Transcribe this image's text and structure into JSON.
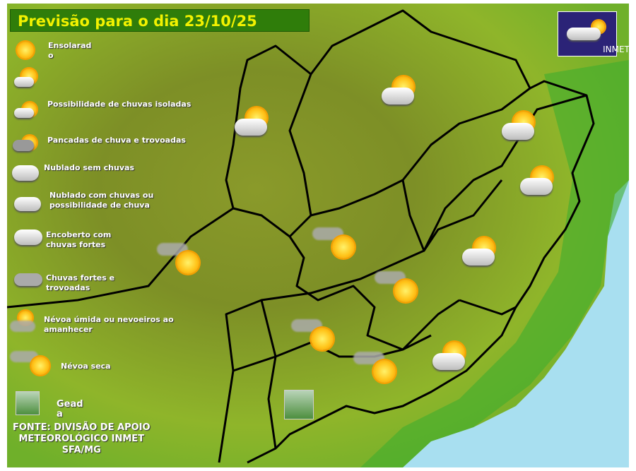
{
  "title": "Previsão para o dia 23/10/25",
  "logo": {
    "text": "INMET"
  },
  "legend": [
    {
      "icon": "sunny-icon",
      "label": "Ensolarad o"
    },
    {
      "icon": "partly-cloudy-icon",
      "label": ""
    },
    {
      "icon": "isolated-showers-icon",
      "label": "Possibilidade de chuvas isoladas"
    },
    {
      "icon": "thunder-showers-icon",
      "label": "Pancadas de chuva e trovoadas"
    },
    {
      "icon": "cloudy-icon",
      "label": "Nublado sem chuvas"
    },
    {
      "icon": "cloudy-rain-icon",
      "label": "Nublado com chuvas ou possibilidade de chuva"
    },
    {
      "icon": "overcast-heavy-rain-icon",
      "label": "Encoberto com chuvas fortes"
    },
    {
      "icon": "heavy-rain-thunder-icon",
      "label": "Chuvas fortes e trovoadas"
    },
    {
      "icon": "fog-icon",
      "label": "Névoa úmida ou nevoeiros ao amanhecer"
    },
    {
      "icon": "haze-icon",
      "label": "Névoa seca"
    },
    {
      "icon": "frost-icon",
      "label": "Gead a"
    }
  ],
  "source": {
    "line1": "FONTE: DIVISÃO DE APOIO",
    "line2": "METEOROLÓGICO  INMET",
    "line3": "SFA/MG"
  },
  "forecast_icons": [
    "partly-cloudy",
    "partly-cloudy",
    "partly-cloudy",
    "partly-cloudy",
    "partly-cloudy",
    "partly-cloudy",
    "haze",
    "haze",
    "haze",
    "haze",
    "haze",
    "frost"
  ],
  "colors": {
    "title_bg": "#2f7d0a",
    "title_text": "#f2f200",
    "ocean": "#a8dff0",
    "logo_bg": "#2b2377"
  }
}
